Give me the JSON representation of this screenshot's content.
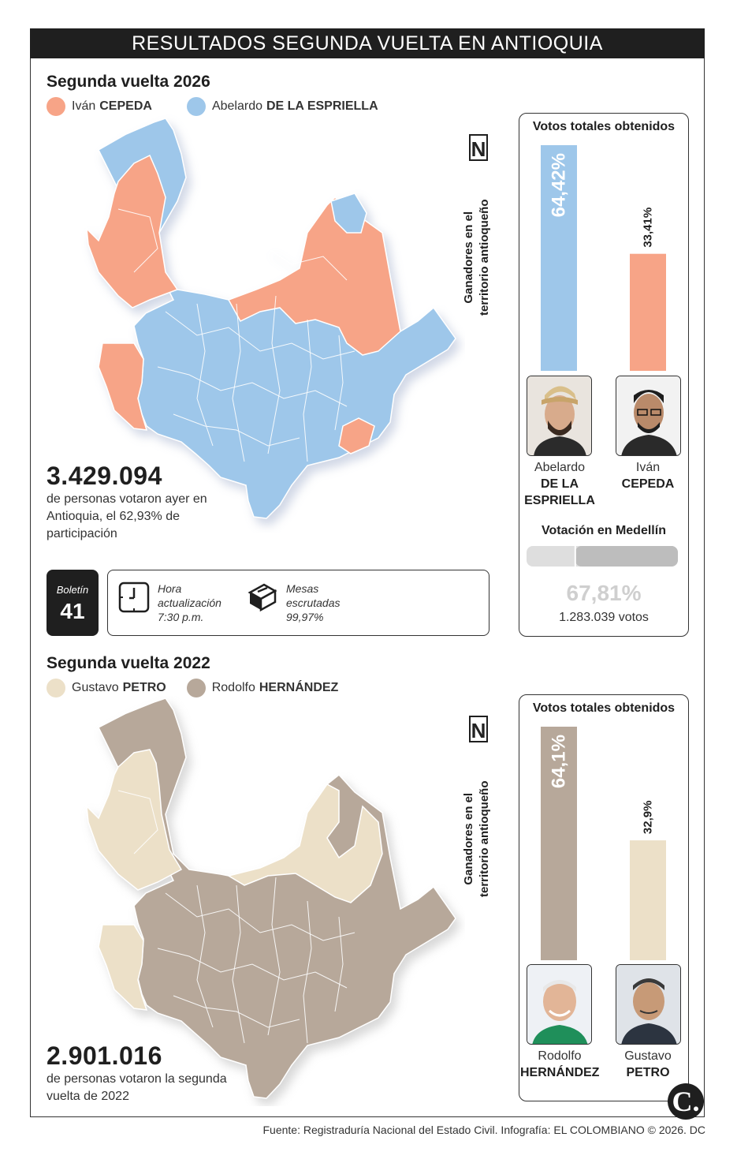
{
  "header": {
    "title": "RESULTADOS SEGUNDA VUELTA EN ANTIOQUIA"
  },
  "colors": {
    "cepeda": "#f7a487",
    "espriella": "#9ec7ea",
    "petro": "#ece0c8",
    "hernandez": "#b7a89a",
    "medellin_bar": "#cfcfcf"
  },
  "section_2026": {
    "title": "Segunda vuelta 2026",
    "legend": [
      {
        "first": "Iván",
        "last": "CEPEDA",
        "color": "#f7a487"
      },
      {
        "first": "Abelardo",
        "last": "DE LA ESPRIELLA",
        "color": "#9ec7ea"
      }
    ],
    "north_label": "N",
    "map_side_label_1": "Ganadores en el",
    "map_side_label_2": "territorio antioqueño",
    "total_votes": "3.429.094",
    "caption": "de personas votaron ayer en Antioquia, el 62,93% de participación",
    "panel_title": "Votos totales obtenidos",
    "candidates": [
      {
        "first": "Abelardo",
        "last_line1": "DE LA",
        "last_line2": "ESPRIELLA"
      },
      {
        "first": "Iván",
        "last_line1": "CEPEDA",
        "last_line2": ""
      }
    ],
    "medellin": {
      "title": "Votación en Medellín",
      "percent_label": "67,81%",
      "votes": "1.283.039 votos"
    }
  },
  "boletin": {
    "label": "Boletín",
    "number": "41"
  },
  "update_info": {
    "time_label_1": "Hora",
    "time_label_2": "actualización",
    "time_value": "7:30 p.m.",
    "mesas_label_1": "Mesas",
    "mesas_label_2": "escrutadas",
    "mesas_value": "99,97%"
  },
  "section_2022": {
    "title": "Segunda vuelta 2022",
    "legend": [
      {
        "first": "Gustavo",
        "last": "PETRO",
        "color": "#ece0c8"
      },
      {
        "first": "Rodolfo",
        "last": "HERNÁNDEZ",
        "color": "#b7a89a"
      }
    ],
    "north_label": "N",
    "map_side_label_1": "Ganadores en el",
    "map_side_label_2": "territorio antioqueño",
    "total_votes": "2.901.016",
    "caption": "de personas votaron la segunda vuelta de 2022",
    "panel_title": "Votos totales obtenidos",
    "candidates": [
      {
        "first": "Rodolfo",
        "last_line1": "HERNÁNDEZ",
        "last_line2": ""
      },
      {
        "first": "Gustavo",
        "last_line1": "PETRO",
        "last_line2": ""
      }
    ]
  },
  "footer": {
    "source": "Fuente: Registraduría Nacional del Estado Civil. Infografía: EL COLOMBIANO © 2026. DC",
    "logo": "C."
  },
  "chart_data": [
    {
      "type": "bar",
      "title": "Votos totales obtenidos",
      "categories": [
        "Abelardo DE LA ESPRIELLA",
        "Iván CEPEDA"
      ],
      "values": [
        64.42,
        33.41
      ],
      "value_labels": [
        "64,42%",
        "33,41%"
      ],
      "ylim": [
        0,
        64.42
      ]
    },
    {
      "type": "bar",
      "title": "Votos totales obtenidos",
      "categories": [
        "Rodolfo HERNÁNDEZ",
        "Gustavo PETRO"
      ],
      "values": [
        64.1,
        32.9
      ],
      "value_labels": [
        "64,1%",
        "32,9%"
      ],
      "ylim": [
        0,
        64.1
      ]
    },
    {
      "type": "bar",
      "title": "Votación en Medellín",
      "values": [
        67.81
      ],
      "value_labels": [
        "67,81%"
      ]
    }
  ]
}
